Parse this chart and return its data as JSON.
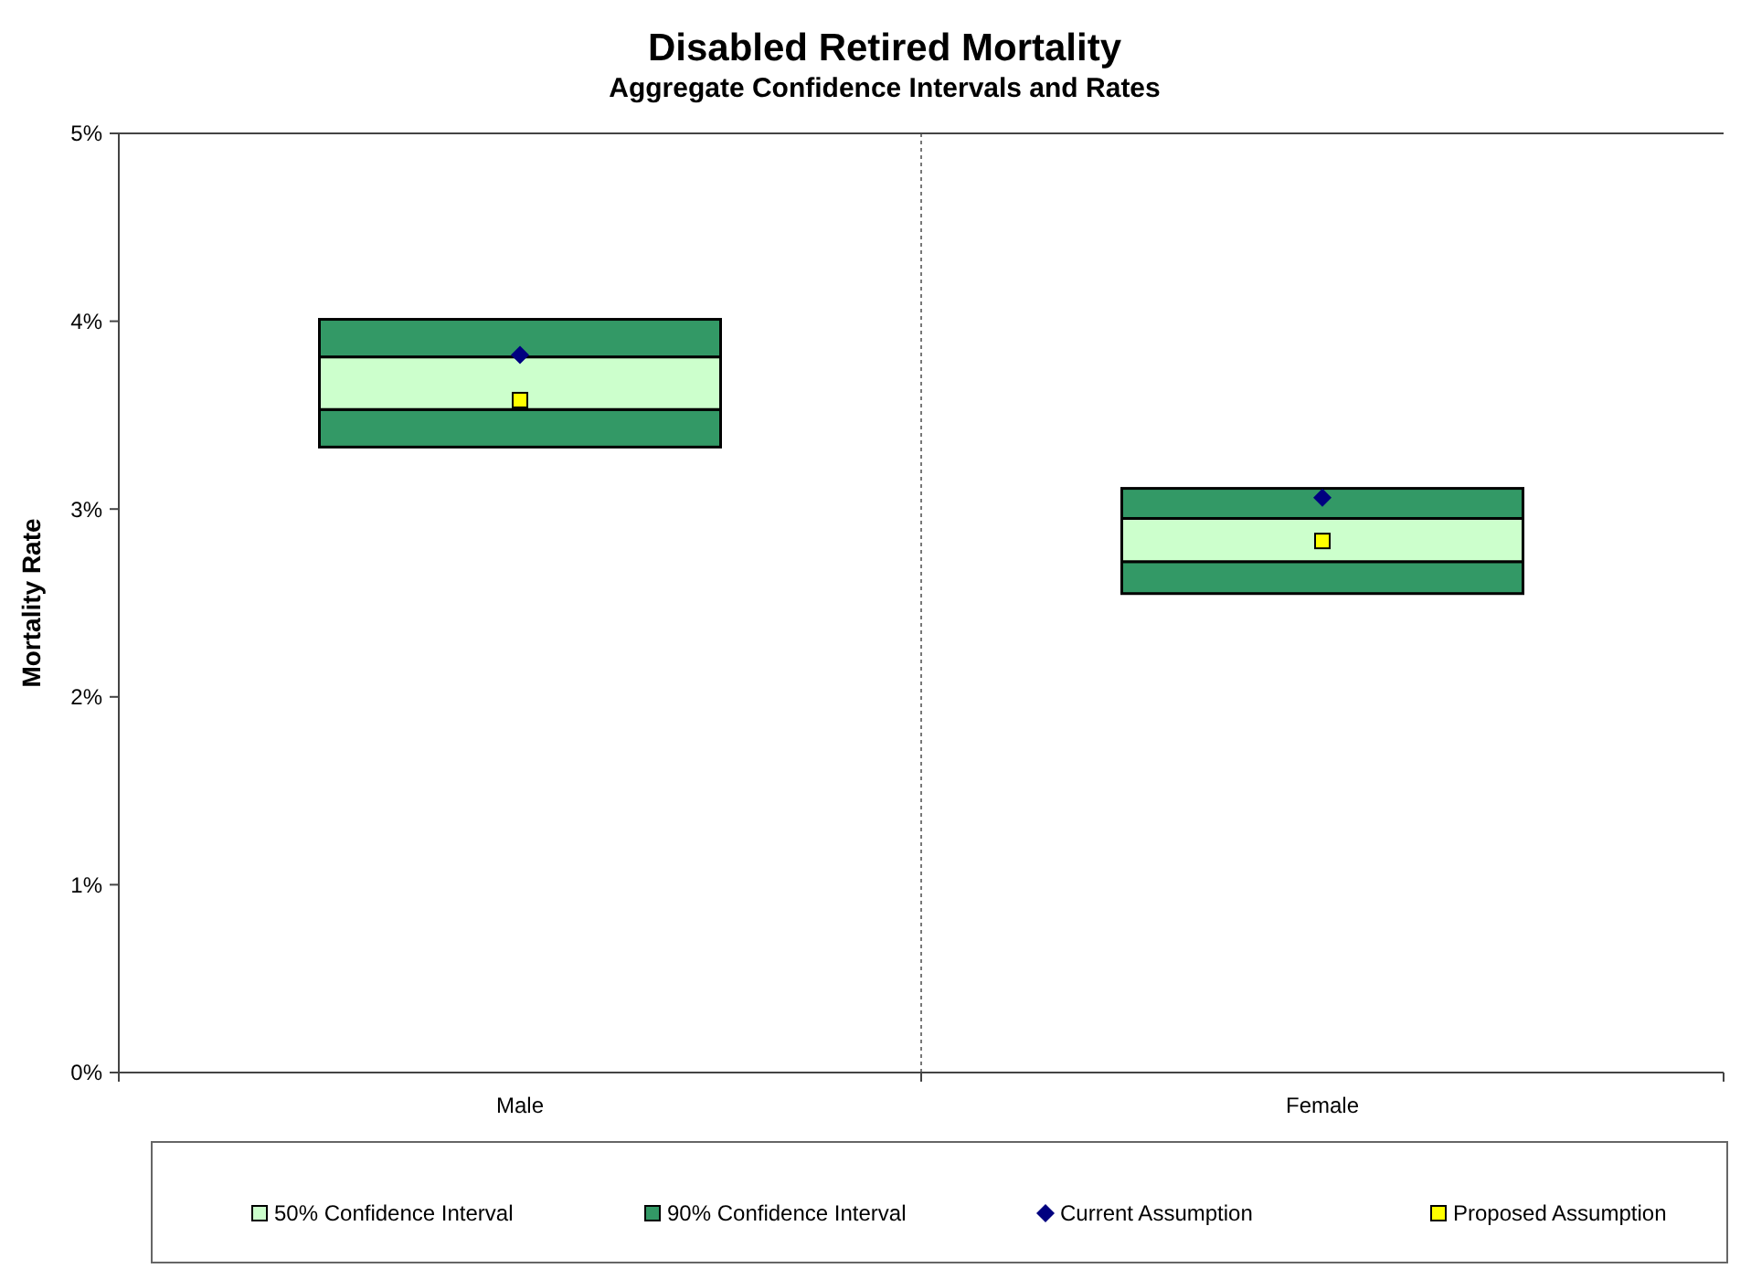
{
  "chart_data": {
    "type": "bar",
    "title": "Disabled Retired Mortality",
    "subtitle": "Aggregate Confidence Intervals and Rates",
    "ylabel": "Mortality  Rate",
    "categories": [
      "Male",
      "Female"
    ],
    "series": [
      {
        "color": "#339966",
        "base": [
          3.33,
          2.55
        ],
        "values": [
          0.2,
          0.17
        ]
      },
      {
        "name": "50% Confidence Interval",
        "color": "#ccffcc",
        "base": [
          3.53,
          2.72
        ],
        "values": [
          0.28,
          0.23
        ]
      },
      {
        "name": "90% Confidence Interval",
        "color": "#339966",
        "base": [
          3.81,
          2.95
        ],
        "values": [
          0.2,
          0.16
        ]
      },
      {
        "name": "Current Assumption",
        "type": "scatter",
        "marker": "diamond",
        "color": "#000080",
        "x": [
          "Male",
          "Female"
        ],
        "values": [
          3.82,
          3.06
        ]
      },
      {
        "name": "Proposed Assumption",
        "type": "scatter",
        "marker": "square",
        "color": "#ffff00",
        "x": [
          "Male",
          "Female"
        ],
        "values": [
          3.58,
          2.83
        ]
      }
    ],
    "ylim": [
      0,
      5
    ],
    "yticks": [
      {
        "value": 0,
        "label": "0%"
      },
      {
        "value": 1,
        "label": "1%"
      },
      {
        "value": 2,
        "label": "2%"
      },
      {
        "value": 3,
        "label": "3%"
      },
      {
        "value": 4,
        "label": "4%"
      },
      {
        "value": 5,
        "label": "5%"
      }
    ],
    "grid": "x",
    "legend": "bottom"
  }
}
